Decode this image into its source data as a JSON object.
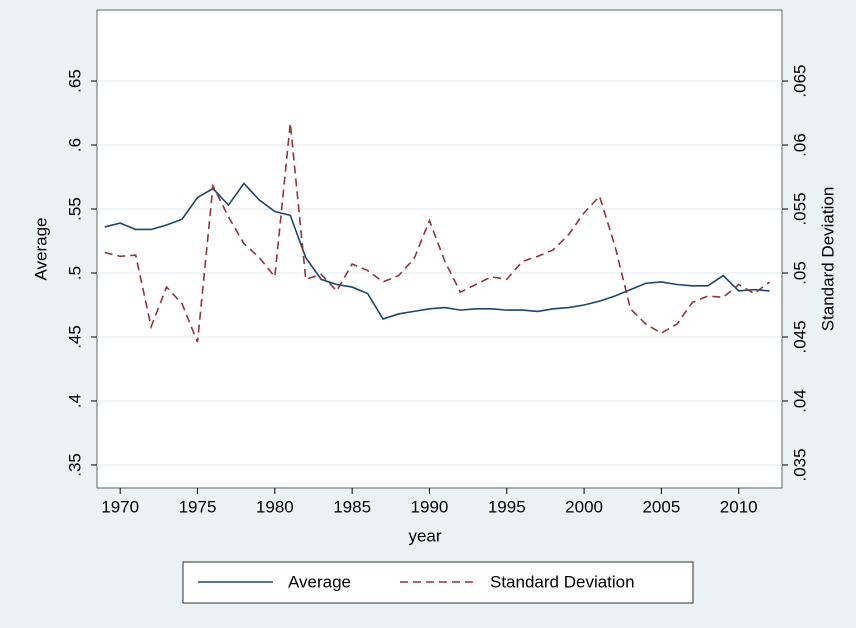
{
  "chart_data": {
    "type": "line",
    "xlabel": "year",
    "ylabel": "Average",
    "y2label": "Standard Deviation",
    "x": [
      1969,
      1970,
      1971,
      1972,
      1973,
      1974,
      1975,
      1976,
      1977,
      1978,
      1979,
      1980,
      1981,
      1982,
      1983,
      1984,
      1985,
      1986,
      1987,
      1988,
      1989,
      1990,
      1991,
      1992,
      1993,
      1994,
      1995,
      1996,
      1997,
      1998,
      1999,
      2000,
      2001,
      2002,
      2003,
      2004,
      2005,
      2006,
      2007,
      2008,
      2009,
      2010,
      2011,
      2012
    ],
    "series": [
      {
        "name": "Average",
        "color": "#1a476f",
        "axis": "y",
        "values": [
          0.536,
          0.539,
          0.534,
          0.534,
          0.5375,
          0.542,
          0.559,
          0.566,
          0.553,
          0.57,
          0.557,
          0.548,
          0.545,
          0.512,
          0.495,
          0.491,
          0.489,
          0.484,
          0.464,
          0.468,
          0.47,
          0.472,
          0.473,
          0.471,
          0.472,
          0.472,
          0.471,
          0.471,
          0.47,
          0.472,
          0.473,
          0.475,
          0.478,
          0.482,
          0.487,
          0.492,
          0.493,
          0.491,
          0.49,
          0.49,
          0.498,
          0.486,
          0.487,
          0.486
        ]
      },
      {
        "name": "Standard Deviation",
        "color": "#90353b",
        "axis": "y2",
        "dash": true,
        "values": [
          0.0516,
          0.0513,
          0.0514,
          0.0458,
          0.0489,
          0.0476,
          0.0446,
          0.0568,
          0.0544,
          0.0523,
          0.0512,
          0.0497,
          0.0617,
          0.0495,
          0.0499,
          0.0486,
          0.0507,
          0.0502,
          0.0493,
          0.0498,
          0.0511,
          0.0541,
          0.0509,
          0.0485,
          0.0491,
          0.0497,
          0.0495,
          0.0509,
          0.0513,
          0.0518,
          0.053,
          0.0547,
          0.056,
          0.0521,
          0.0472,
          0.046,
          0.0453,
          0.046,
          0.0477,
          0.0482,
          0.0481,
          0.0491,
          0.0484,
          0.0493
        ]
      }
    ],
    "xlim": [
      1968.5,
      2012.8
    ],
    "xticks": [
      1970,
      1975,
      1980,
      1985,
      1990,
      1995,
      2000,
      2005,
      2010
    ],
    "ylim": [
      0.332,
      0.7055
    ],
    "yticks": [
      {
        "value": 0.35,
        "label": ".35"
      },
      {
        "value": 0.4,
        "label": ".4"
      },
      {
        "value": 0.45,
        "label": ".45"
      },
      {
        "value": 0.5,
        "label": ".5"
      },
      {
        "value": 0.55,
        "label": ".55"
      },
      {
        "value": 0.6,
        "label": ".6"
      },
      {
        "value": 0.65,
        "label": ".65"
      }
    ],
    "y2lim": [
      0.0332,
      0.07055
    ],
    "y2ticks": [
      {
        "value": 0.035,
        "label": ".035"
      },
      {
        "value": 0.04,
        "label": ".04"
      },
      {
        "value": 0.045,
        "label": ".045"
      },
      {
        "value": 0.05,
        "label": ".05"
      },
      {
        "value": 0.055,
        "label": ".055"
      },
      {
        "value": 0.06,
        "label": ".06"
      },
      {
        "value": 0.065,
        "label": ".065"
      }
    ],
    "grid": true,
    "legend": "bottom"
  }
}
